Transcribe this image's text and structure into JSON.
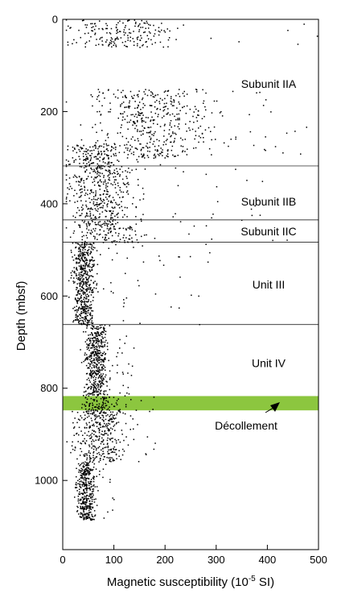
{
  "chart_data": {
    "type": "scatter",
    "xlabel": "Magnetic susceptibility (10",
    "xlabel_exponent": "-5",
    "xlabel_suffix": " SI)",
    "ylabel": "Depth (mbsf)",
    "xlim": [
      0,
      500
    ],
    "ylim": [
      1150,
      0
    ],
    "y_inverted": true,
    "x_ticks": [
      "0",
      "100",
      "200",
      "300",
      "400",
      "500"
    ],
    "y_ticks": [
      "0",
      "200",
      "400",
      "600",
      "800",
      "1000"
    ],
    "boundaries_mbsf": [
      318,
      435,
      483,
      662
    ],
    "decollement": {
      "label": "Décollement",
      "top_mbsf": 817,
      "bottom_mbsf": 848,
      "color": "#8cc63f"
    },
    "units": [
      {
        "label": "Subunit IIA",
        "depth_mbsf": 140
      },
      {
        "label": "Subunit IIB",
        "depth_mbsf": 395
      },
      {
        "label": "Subunit IIC",
        "depth_mbsf": 460
      },
      {
        "label": "Unit III",
        "depth_mbsf": 575
      },
      {
        "label": "Unit IV",
        "depth_mbsf": 745
      }
    ],
    "point_clusters": [
      {
        "depth_range": [
          0,
          60
        ],
        "x_mean": 110,
        "x_spread": 110,
        "x_max": 500
      },
      {
        "depth_range": [
          150,
          300
        ],
        "x_mean": 170,
        "x_spread": 140,
        "x_max": 480
      },
      {
        "depth_range": [
          270,
          318
        ],
        "x_mean": 60,
        "x_spread": 60,
        "x_max": 260
      },
      {
        "depth_range": [
          318,
          435
        ],
        "x_mean": 75,
        "x_spread": 70,
        "x_max": 390
      },
      {
        "depth_range": [
          435,
          483
        ],
        "x_mean": 85,
        "x_spread": 80,
        "x_max": 480
      },
      {
        "depth_range": [
          483,
          662
        ],
        "x_mean": 40,
        "x_spread": 25,
        "x_max": 300
      },
      {
        "depth_range": [
          662,
          817
        ],
        "x_mean": 65,
        "x_spread": 25,
        "x_max": 140
      },
      {
        "depth_range": [
          817,
          848
        ],
        "x_mean": 70,
        "x_spread": 40,
        "x_max": 200
      },
      {
        "depth_range": [
          848,
          960
        ],
        "x_mean": 70,
        "x_spread": 55,
        "x_max": 180
      },
      {
        "depth_range": [
          960,
          1085
        ],
        "x_mean": 45,
        "x_spread": 20,
        "x_max": 100
      }
    ],
    "grid": false
  }
}
